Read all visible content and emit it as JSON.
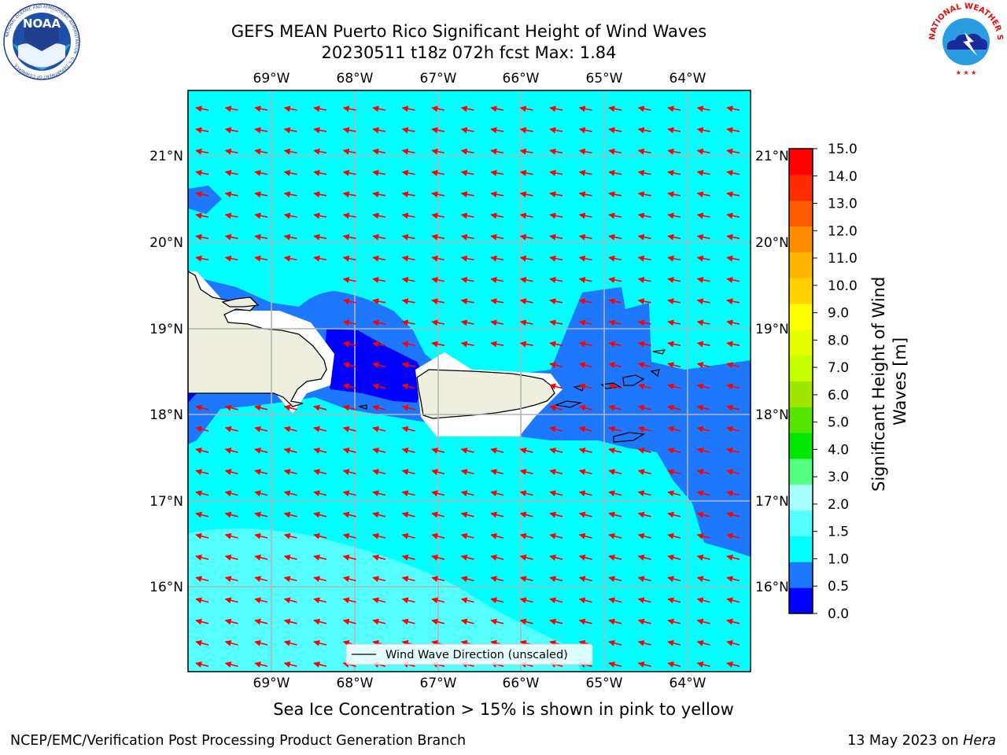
{
  "header": {
    "title_line1": "GEFS MEAN Puerto Rico Significant Height of Wind Waves",
    "title_line2": "20230511 t18z 072h fcst   Max: 1.84"
  },
  "logos": {
    "left": "noaa-logo",
    "left_text": "NOAA",
    "left_ring_text": "NATIONAL OCEANIC AND ATMOSPHERIC ADMINISTRATION · U.S. DEPARTMENT OF COMMERCE",
    "right": "nws-logo",
    "right_ring_text": "NATIONAL WEATHER SERVICE"
  },
  "map": {
    "lon_labels": [
      "69°W",
      "68°W",
      "67°W",
      "66°W",
      "65°W",
      "64°W"
    ],
    "lat_labels": [
      "21°N",
      "20°N",
      "19°N",
      "18°N",
      "17°N",
      "16°N"
    ],
    "lon_range": [
      -69.99,
      -63.25
    ],
    "lat_range": [
      15.0,
      21.75
    ],
    "grid": true,
    "wind_direction": "arrows pointing west (easterly trade winds)",
    "arrow_color": "#ff0000",
    "legend_label": "Wind Wave Direction (unscaled)",
    "land_color": "#efefdf"
  },
  "colorbar": {
    "label": "Significant Height of Wind Waves [m]",
    "label_line1": "Significant Height of Wind",
    "label_line2": "Waves [m]",
    "ticks": [
      "0.0",
      "0.5",
      "1.0",
      "1.5",
      "2.0",
      "3.0",
      "4.0",
      "5.0",
      "6.0",
      "7.0",
      "8.0",
      "9.0",
      "10.0",
      "11.0",
      "12.0",
      "13.0",
      "14.0",
      "15.0"
    ],
    "colors": [
      "#0000ff",
      "#1e78ff",
      "#00ffff",
      "#55ffff",
      "#aaffff",
      "#55ff80",
      "#00e600",
      "#55e600",
      "#a0e600",
      "#c8ff00",
      "#e6ff00",
      "#ffff00",
      "#ffd200",
      "#ffb400",
      "#ff8c00",
      "#ff5a00",
      "#ff2a00",
      "#ff0000"
    ]
  },
  "footer": {
    "note": "Sea Ice Concentration > 15% is shown in pink to yellow",
    "left": "NCEP/EMC/Verification Post Processing Product Generation Branch",
    "right_prefix": "13 May 2023 on ",
    "right_machine": "Hera"
  }
}
